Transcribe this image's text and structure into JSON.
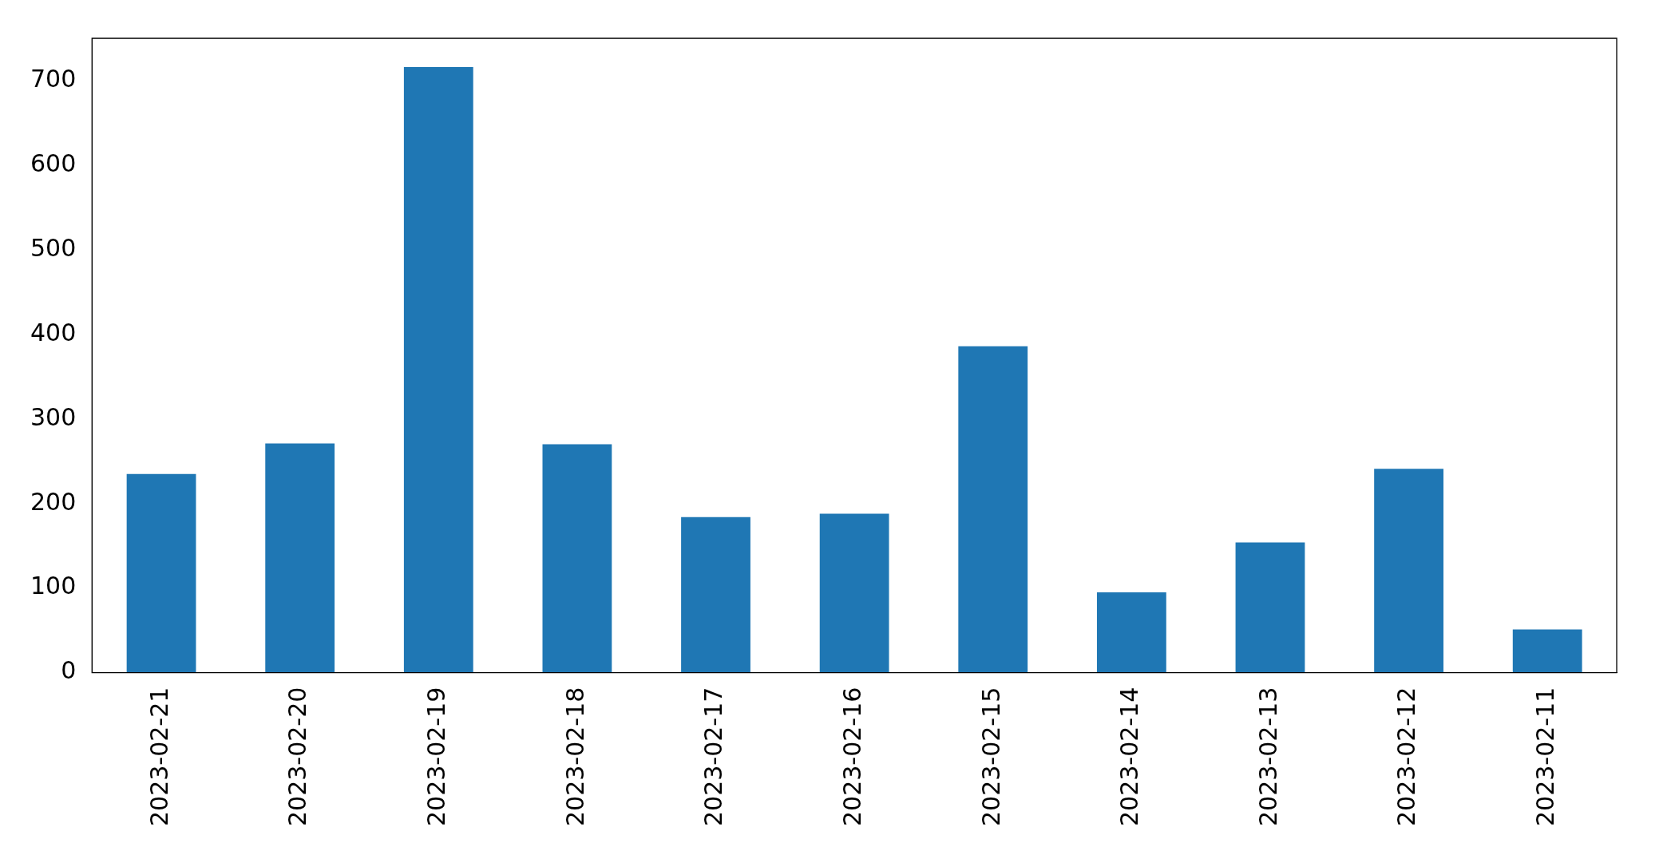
{
  "chart_data": {
    "type": "bar",
    "categories": [
      "2023-02-21",
      "2023-02-20",
      "2023-02-19",
      "2023-02-18",
      "2023-02-17",
      "2023-02-16",
      "2023-02-15",
      "2023-02-14",
      "2023-02-13",
      "2023-02-12",
      "2023-02-11"
    ],
    "values": [
      235,
      271,
      716,
      270,
      184,
      188,
      386,
      95,
      154,
      241,
      51
    ],
    "color": "#1f77b4",
    "ylim": [
      0,
      750
    ],
    "yticks": [
      0,
      100,
      200,
      300,
      400,
      500,
      600,
      700
    ],
    "grid": false,
    "legend": false
  }
}
